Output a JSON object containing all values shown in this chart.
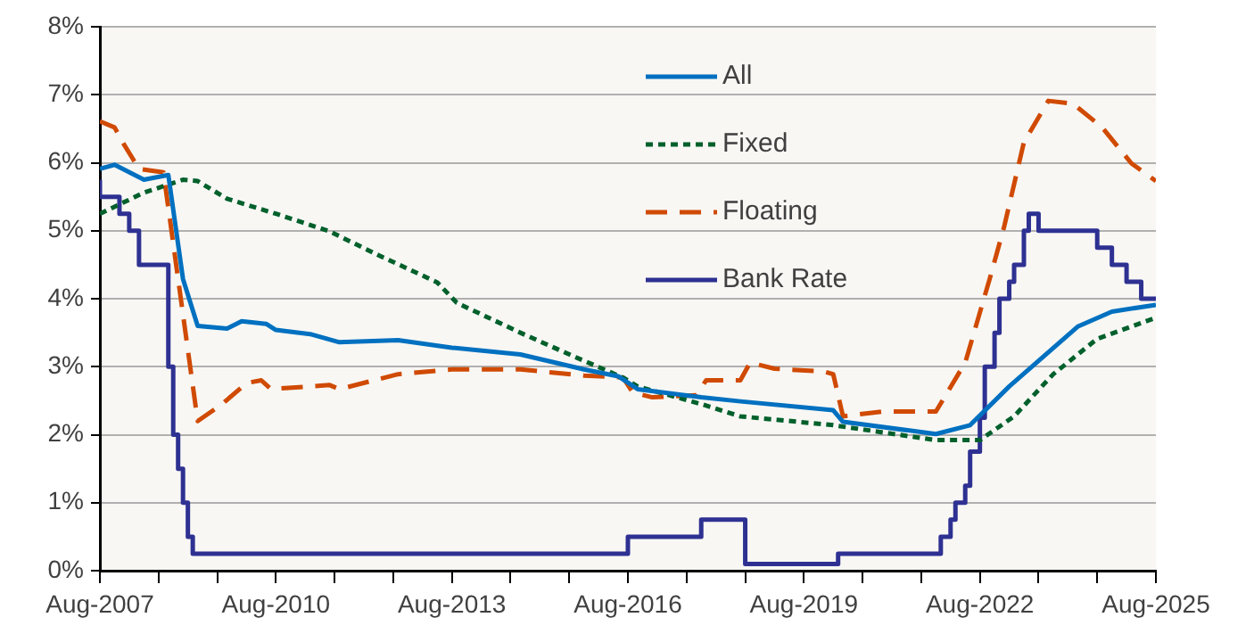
{
  "chart_data": {
    "type": "line",
    "xlim": [
      "2007-08",
      "2025-08"
    ],
    "xticks": [
      {
        "value": "2007-08",
        "label": "Aug-2007"
      },
      {
        "value": "2008-08",
        "label": null
      },
      {
        "value": "2009-08",
        "label": null
      },
      {
        "value": "2010-08",
        "label": "Aug-2010"
      },
      {
        "value": "2011-08",
        "label": null
      },
      {
        "value": "2012-08",
        "label": null
      },
      {
        "value": "2013-08",
        "label": "Aug-2013"
      },
      {
        "value": "2014-08",
        "label": null
      },
      {
        "value": "2015-08",
        "label": null
      },
      {
        "value": "2016-08",
        "label": "Aug-2016"
      },
      {
        "value": "2017-08",
        "label": null
      },
      {
        "value": "2018-08",
        "label": null
      },
      {
        "value": "2019-08",
        "label": "Aug-2019"
      },
      {
        "value": "2020-08",
        "label": null
      },
      {
        "value": "2021-08",
        "label": null
      },
      {
        "value": "2022-08",
        "label": "Aug-2022"
      },
      {
        "value": "2023-08",
        "label": null
      },
      {
        "value": "2024-08",
        "label": null
      },
      {
        "value": "2025-08",
        "label": "Aug-2025"
      }
    ],
    "ylim": [
      0,
      8
    ],
    "yticks": [
      {
        "value": 0,
        "label": "0%"
      },
      {
        "value": 1,
        "label": "1%"
      },
      {
        "value": 2,
        "label": "2%"
      },
      {
        "value": 3,
        "label": "3%"
      },
      {
        "value": 4,
        "label": "4%"
      },
      {
        "value": 5,
        "label": "5%"
      },
      {
        "value": 6,
        "label": "6%"
      },
      {
        "value": 7,
        "label": "7%"
      },
      {
        "value": 8,
        "label": "8%"
      }
    ],
    "grid": "y",
    "legend": "top",
    "series": [
      {
        "name": "All",
        "color": "#0070c0",
        "line_style": "solid",
        "x": [
          "2007-08",
          "2007-11",
          "2008-05",
          "2008-10",
          "2009-01",
          "2009-04",
          "2009-10",
          "2010-01",
          "2010-06",
          "2010-08",
          "2011-03",
          "2011-09",
          "2012-09",
          "2013-08",
          "2014-10",
          "2015-11",
          "2016-06",
          "2016-10",
          "2017-11",
          "2018-07",
          "2020-02",
          "2020-04",
          "2021-11",
          "2022-06",
          "2023-02",
          "2023-09",
          "2024-04",
          "2024-11",
          "2025-08"
        ],
        "values": [
          5.91,
          5.97,
          5.75,
          5.82,
          4.29,
          3.6,
          3.56,
          3.67,
          3.63,
          3.54,
          3.48,
          3.36,
          3.39,
          3.28,
          3.18,
          2.96,
          2.86,
          2.67,
          2.55,
          2.49,
          2.36,
          2.19,
          2.01,
          2.14,
          2.71,
          3.15,
          3.59,
          3.81,
          3.91
        ]
      },
      {
        "name": "Fixed",
        "color": "#00602b",
        "line_style": "dotted",
        "x": [
          "2007-08",
          "2008-05",
          "2009-01",
          "2009-04",
          "2009-10",
          "2010-08",
          "2011-07",
          "2012-05",
          "2013-05",
          "2013-09",
          "2014-10",
          "2015-09",
          "2016-07",
          "2016-10",
          "2017-11",
          "2018-07",
          "2020-02",
          "2021-11",
          "2022-08",
          "2023-03",
          "2023-11",
          "2024-08",
          "2025-08"
        ],
        "values": [
          5.25,
          5.56,
          5.75,
          5.73,
          5.47,
          5.25,
          4.99,
          4.64,
          4.24,
          3.94,
          3.5,
          3.15,
          2.84,
          2.71,
          2.45,
          2.27,
          2.14,
          1.92,
          1.92,
          2.27,
          2.89,
          3.41,
          3.72
        ]
      },
      {
        "name": "Floating",
        "color": "#d04a02",
        "line_style": "dashed",
        "x": [
          "2007-08",
          "2007-11",
          "2008-01",
          "2008-04",
          "2008-09",
          "2008-12",
          "2009-04",
          "2009-09",
          "2010-02",
          "2010-05",
          "2010-07",
          "2011-07",
          "2011-09",
          "2012-09",
          "2013-08",
          "2014-10",
          "2015-11",
          "2016-07",
          "2016-09",
          "2017-01",
          "2017-10",
          "2017-12",
          "2018-07",
          "2018-09",
          "2019-02",
          "2019-12",
          "2020-02",
          "2020-04",
          "2020-12",
          "2021-11",
          "2022-05",
          "2022-10",
          "2023-01",
          "2023-05",
          "2023-10",
          "2024-03",
          "2024-09",
          "2025-03",
          "2025-08"
        ],
        "values": [
          6.61,
          6.52,
          6.26,
          5.91,
          5.86,
          4.29,
          2.2,
          2.45,
          2.76,
          2.8,
          2.67,
          2.73,
          2.67,
          2.89,
          2.96,
          2.96,
          2.87,
          2.84,
          2.62,
          2.55,
          2.58,
          2.8,
          2.8,
          3.06,
          2.97,
          2.93,
          2.89,
          2.27,
          2.34,
          2.34,
          3.06,
          4.29,
          5.07,
          6.3,
          6.91,
          6.87,
          6.52,
          5.99,
          5.73
        ]
      },
      {
        "name": "Bank Rate",
        "type": "step",
        "color": "#2e3192",
        "line_style": "solid",
        "x": [
          "2007-08",
          "2007-12",
          "2008-02",
          "2008-04",
          "2008-10",
          "2008-11",
          "2008-12",
          "2009-01",
          "2009-02",
          "2009-03",
          "2016-08",
          "2017-11",
          "2018-08",
          "2020-03",
          "2021-12",
          "2022-02",
          "2022-03",
          "2022-05",
          "2022-06",
          "2022-08",
          "2022-09",
          "2022-11",
          "2022-12",
          "2023-02",
          "2023-03",
          "2023-05",
          "2023-06",
          "2023-08",
          "2024-08",
          "2024-11",
          "2025-02",
          "2025-05",
          "2025-08"
        ],
        "values": [
          5.75,
          5.5,
          5.25,
          5.0,
          4.5,
          3.0,
          2.0,
          1.5,
          1.0,
          0.5,
          0.25,
          0.5,
          0.75,
          0.1,
          0.25,
          0.5,
          0.75,
          1.0,
          1.25,
          1.75,
          2.25,
          3.0,
          3.5,
          4.0,
          4.25,
          4.5,
          5.0,
          5.25,
          5.0,
          4.75,
          4.5,
          4.25,
          4.0
        ]
      }
    ]
  }
}
